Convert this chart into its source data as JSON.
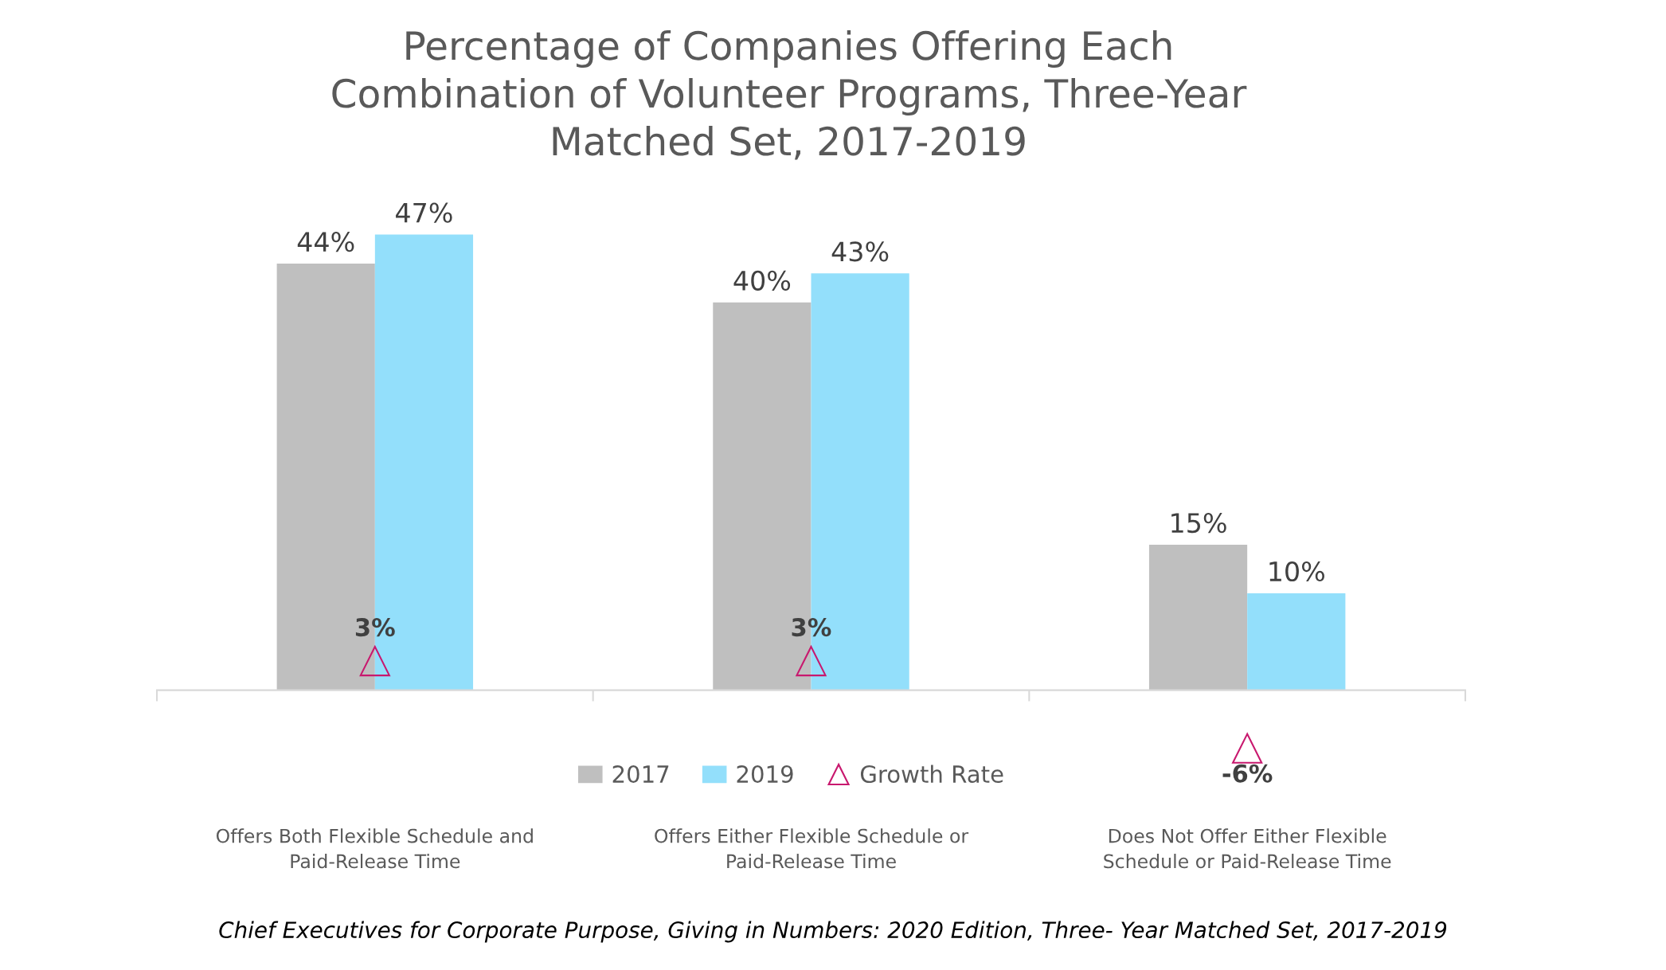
{
  "chart_data": {
    "type": "bar",
    "title": "Percentage of Companies Offering Each\nCombination of Volunteer Programs, Three-Year\nMatched Set, 2017-2019",
    "categories": [
      "Offers Both Flexible Schedule and\nPaid-Release Time",
      "Offers Either Flexible Schedule or\nPaid-Release Time",
      "Does Not Offer Either Flexible\nSchedule or Paid-Release Time"
    ],
    "series": [
      {
        "name": "2017",
        "color": "#bfbfbf",
        "values": [
          44,
          40,
          15
        ],
        "value_labels": [
          "44%",
          "40%",
          "15%"
        ]
      },
      {
        "name": "2019",
        "color": "#93dffb",
        "values": [
          47,
          43,
          10
        ],
        "value_labels": [
          "47%",
          "43%",
          "10%"
        ]
      },
      {
        "name": "Growth Rate",
        "type": "scatter",
        "marker": "triangle",
        "color": "#c8186e",
        "values": [
          3,
          3,
          -6
        ],
        "value_labels": [
          "3%",
          "3%",
          "-6%"
        ]
      }
    ],
    "tick_labels": "x",
    "grid": false,
    "legend": "bottom",
    "annotations": [
      "Chief Executives for Corporate Purpose, Giving in Numbers: 2020 Edition, Three- Year Matched Set, 2017-2019"
    ]
  }
}
